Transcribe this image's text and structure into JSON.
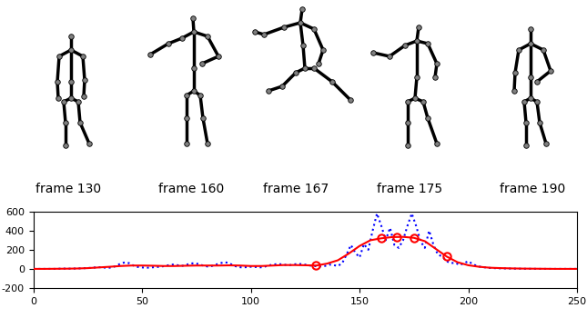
{
  "chart_data": {
    "type": "line",
    "annotations": [
      "frame 130",
      "frame 160",
      "frame 167",
      "frame 175",
      "frame 190"
    ],
    "xlim": [
      0,
      250
    ],
    "xticks": [
      0,
      50,
      100,
      150,
      200,
      250
    ],
    "ylim": [
      -200,
      600
    ],
    "yticks": [
      -200,
      0,
      200,
      400,
      600
    ],
    "series": [
      {
        "type": "line",
        "color": "blue",
        "line_style": "dotted",
        "x": [
          0,
          2,
          4,
          6,
          8,
          10,
          12,
          14,
          16,
          18,
          20,
          22,
          24,
          26,
          28,
          30,
          32,
          34,
          36,
          38,
          40,
          42,
          44,
          46,
          48,
          50,
          52,
          54,
          56,
          58,
          60,
          62,
          64,
          66,
          68,
          70,
          72,
          74,
          76,
          78,
          80,
          82,
          84,
          86,
          88,
          90,
          92,
          94,
          96,
          98,
          100,
          102,
          104,
          106,
          108,
          110,
          112,
          114,
          116,
          118,
          120,
          122,
          124,
          126,
          128,
          130,
          132,
          134,
          136,
          138,
          140,
          142,
          144,
          146,
          148,
          150,
          152,
          154,
          156,
          158,
          160,
          162,
          164,
          166,
          168,
          170,
          172,
          174,
          176,
          178,
          180,
          182,
          184,
          186,
          188,
          190,
          192,
          194,
          196,
          198,
          200,
          202,
          204,
          206,
          208,
          210,
          212,
          214,
          216,
          218,
          220,
          222,
          224,
          226,
          228,
          230,
          232,
          234,
          236,
          238,
          240,
          242,
          244,
          246,
          248,
          250
        ],
        "values": [
          0,
          0,
          0,
          0,
          0,
          0,
          2,
          3,
          2,
          3,
          4,
          6,
          8,
          10,
          14,
          18,
          15,
          10,
          15,
          30,
          55,
          68,
          60,
          35,
          20,
          15,
          12,
          15,
          18,
          22,
          28,
          38,
          45,
          40,
          30,
          40,
          55,
          60,
          50,
          35,
          25,
          30,
          45,
          60,
          70,
          60,
          35,
          20,
          15,
          18,
          22,
          20,
          15,
          20,
          35,
          45,
          50,
          48,
          42,
          40,
          48,
          52,
          48,
          40,
          32,
          28,
          25,
          30,
          45,
          40,
          30,
          60,
          150,
          250,
          170,
          120,
          260,
          200,
          400,
          580,
          450,
          300,
          430,
          250,
          220,
          300,
          450,
          580,
          450,
          290,
          220,
          400,
          250,
          150,
          130,
          80,
          60,
          65,
          40,
          60,
          80,
          50,
          30,
          20,
          15,
          10,
          8,
          6,
          5,
          4,
          3,
          2,
          2,
          1,
          1,
          1,
          0,
          0,
          0,
          0,
          0,
          0,
          0,
          0,
          0,
          0
        ]
      },
      {
        "type": "line",
        "color": "red",
        "line_style": "solid",
        "x": [
          0,
          5,
          10,
          15,
          20,
          25,
          30,
          35,
          40,
          45,
          50,
          55,
          60,
          65,
          70,
          75,
          80,
          85,
          90,
          95,
          100,
          105,
          110,
          115,
          120,
          125,
          130,
          135,
          140,
          145,
          150,
          155,
          160,
          165,
          170,
          175,
          180,
          185,
          190,
          195,
          200,
          205,
          210,
          215,
          220,
          225,
          230,
          235,
          240,
          245,
          250
        ],
        "values": [
          0,
          0,
          1,
          2,
          4,
          8,
          15,
          22,
          30,
          35,
          35,
          33,
          30,
          30,
          33,
          35,
          35,
          35,
          37,
          35,
          30,
          30,
          35,
          40,
          40,
          38,
          35,
          55,
          90,
          160,
          240,
          300,
          320,
          333,
          335,
          325,
          290,
          210,
          130,
          70,
          38,
          22,
          12,
          8,
          5,
          3,
          2,
          1,
          0,
          0,
          0
        ]
      },
      {
        "type": "scatter",
        "color": "red",
        "marker": "o",
        "x": [
          130,
          160,
          167,
          175,
          190
        ],
        "values": [
          35,
          320,
          335,
          325,
          130
        ]
      }
    ]
  }
}
